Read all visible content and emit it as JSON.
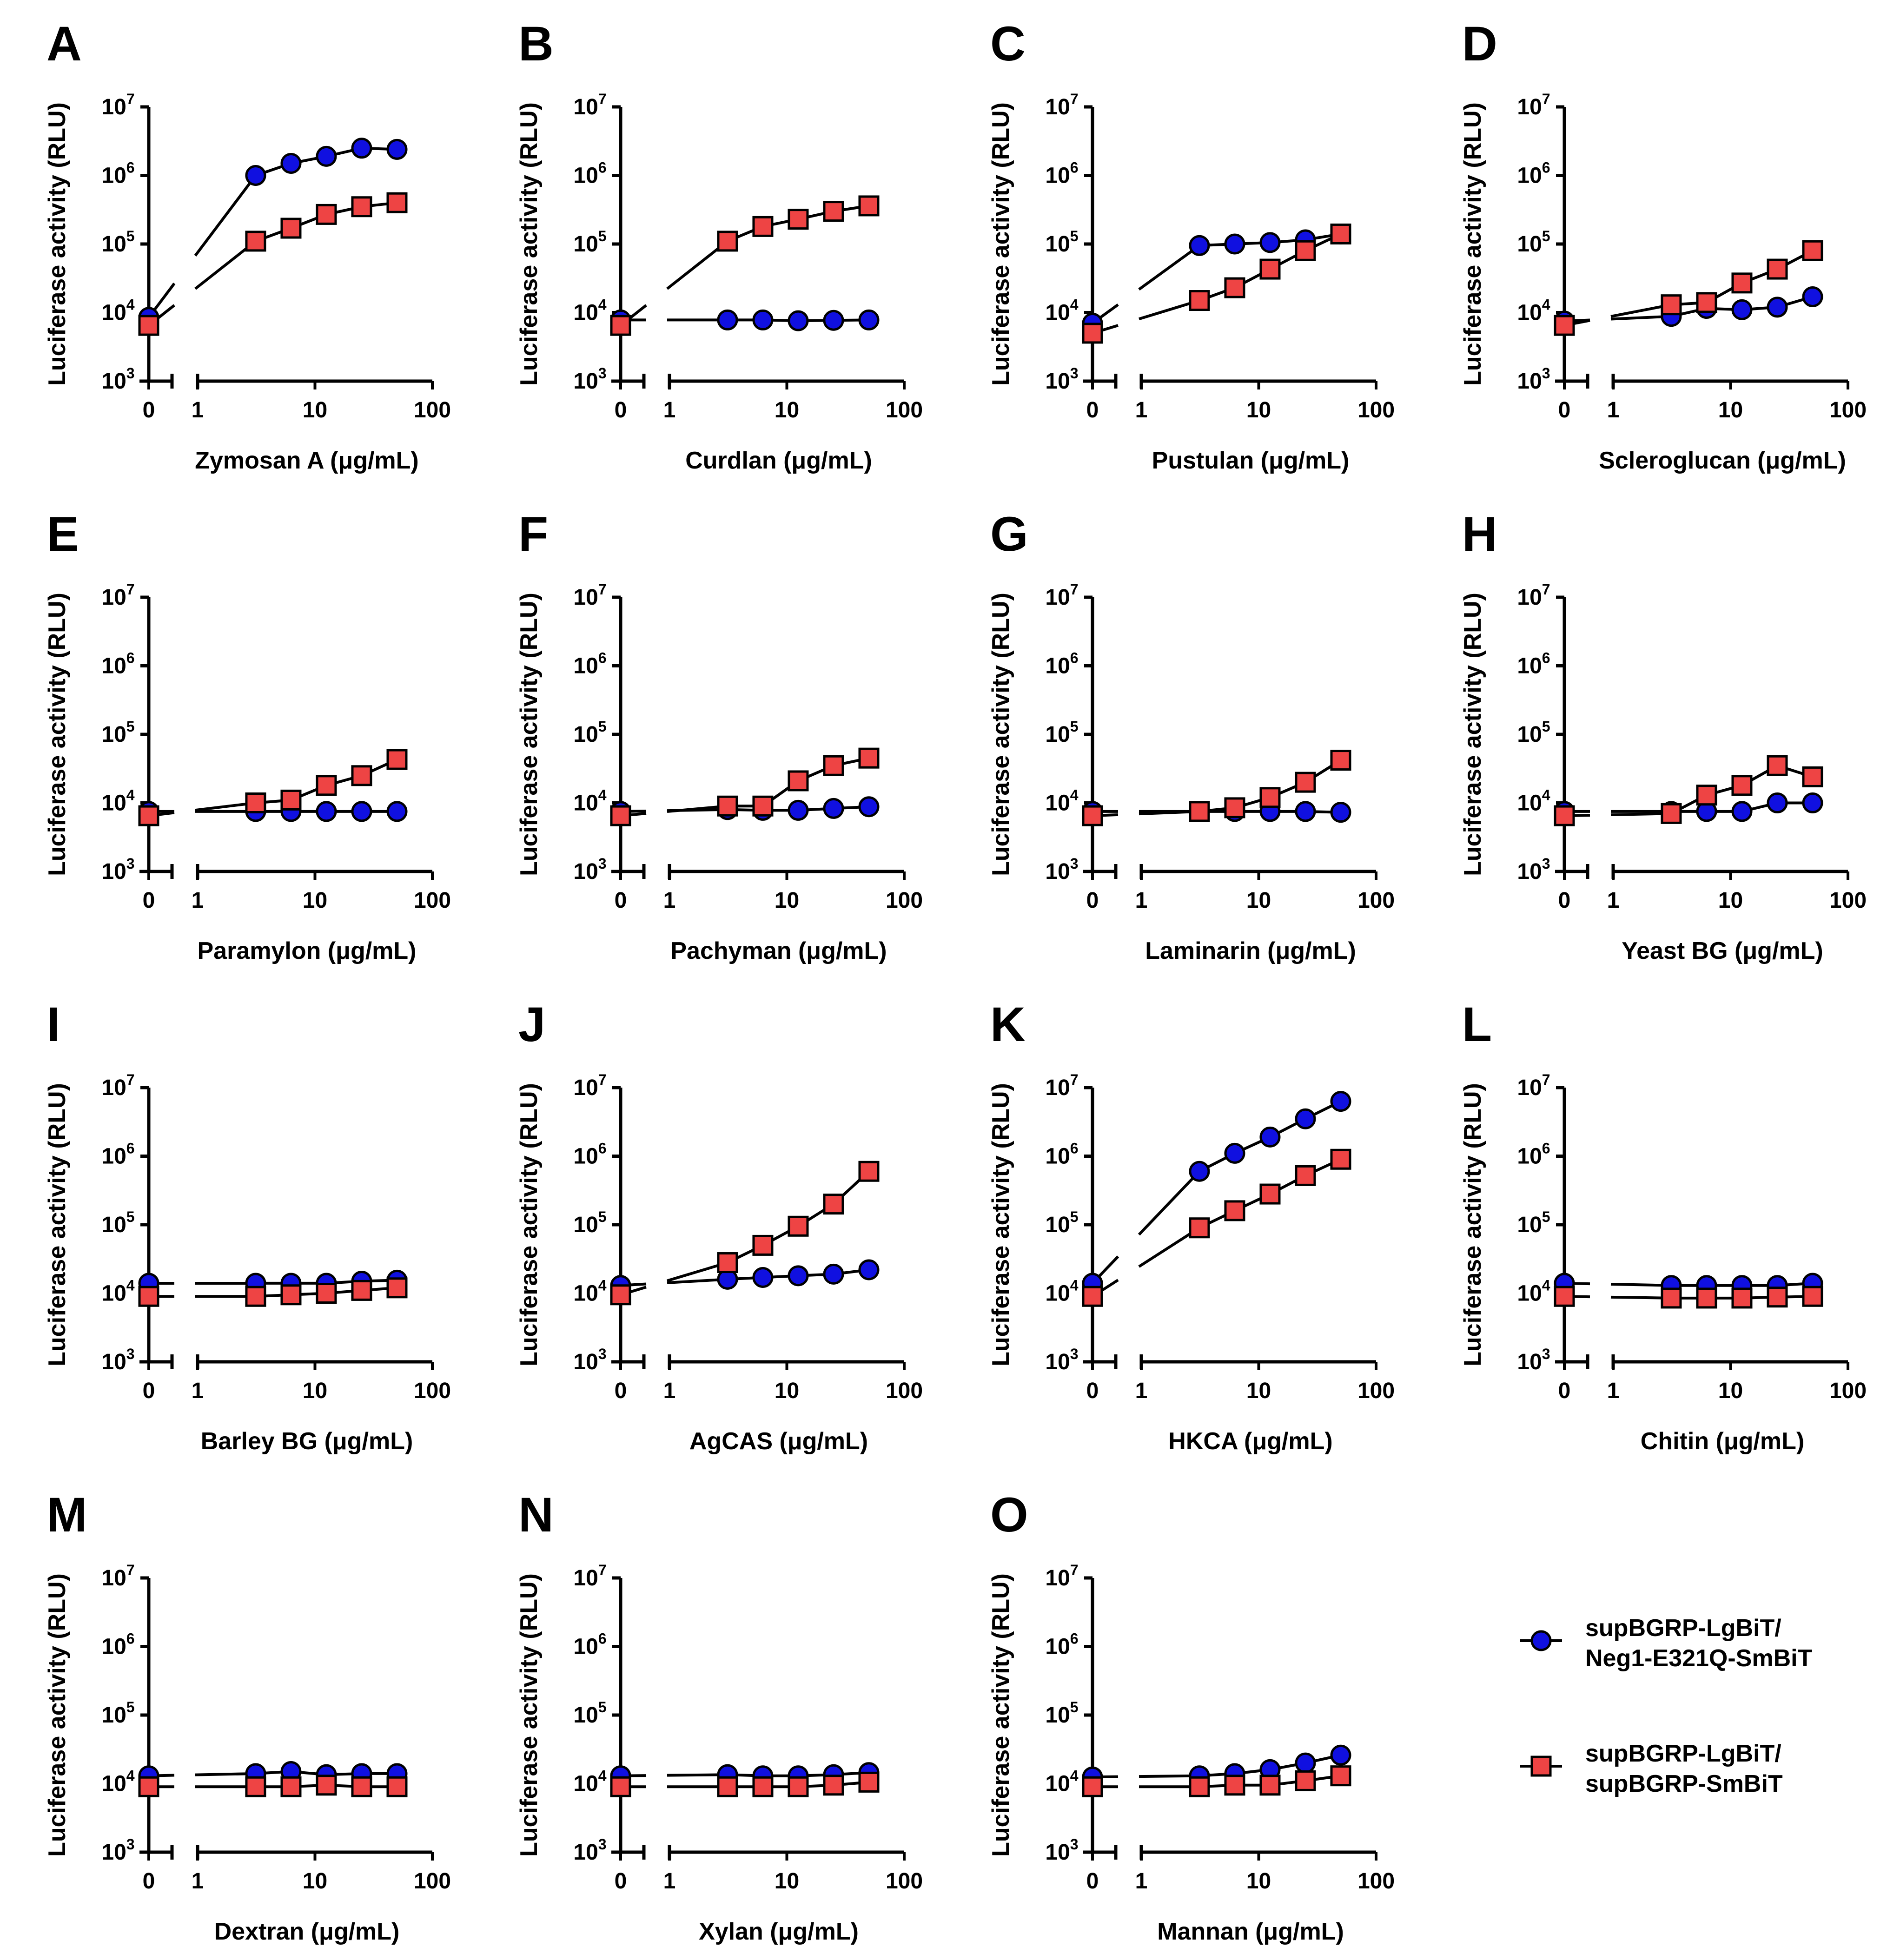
{
  "figure": {
    "ylabel": "Luciferase activity (RLU)",
    "y_tick_labels": [
      "10",
      "10",
      "10",
      "10",
      "10"
    ],
    "y_tick_exponents": [
      "3",
      "4",
      "5",
      "6",
      "7"
    ],
    "x_tick_labels": [
      "0",
      "1",
      "10",
      "100"
    ]
  },
  "legend": {
    "items": [
      {
        "line1": "supBGRP-LgBiT/",
        "line2": "Neg1-E321Q-SmBiT",
        "marker": "circle",
        "color": "#1010e0"
      },
      {
        "line1": "supBGRP-LgBiT/",
        "line2": "supBGRP-SmBiT",
        "marker": "square",
        "color": "#ee4444"
      }
    ]
  },
  "colors": {
    "blue": "#1010e0",
    "red": "#ee4444",
    "axis": "#000000"
  },
  "chart_data": [
    {
      "panel": "A",
      "type": "line",
      "title": "",
      "xlabel": "Zymosan A (μg/mL)",
      "ylabel": "Luciferase activity (RLU)",
      "xscale": "log",
      "yscale": "log",
      "ylim": [
        1000,
        10000000
      ],
      "xlim": [
        1,
        100
      ],
      "x": [
        0,
        3.125,
        6.25,
        12.5,
        25,
        50
      ],
      "series": [
        {
          "name": "supBGRP-LgBiT/Neg1-E321Q-SmBiT",
          "values": [
            8500,
            1000000,
            1500000,
            1900000,
            2500000,
            2400000
          ]
        },
        {
          "name": "supBGRP-LgBiT/supBGRP-SmBiT",
          "values": [
            6500,
            110000,
            170000,
            270000,
            350000,
            400000
          ]
        }
      ]
    },
    {
      "panel": "B",
      "type": "line",
      "title": "",
      "xlabel": "Curdlan (μg/mL)",
      "ylabel": "Luciferase activity (RLU)",
      "xscale": "log",
      "yscale": "log",
      "ylim": [
        1000,
        10000000
      ],
      "xlim": [
        1,
        100
      ],
      "x": [
        0,
        3.125,
        6.25,
        12.5,
        25,
        50
      ],
      "series": [
        {
          "name": "supBGRP-LgBiT/Neg1-E321Q-SmBiT",
          "values": [
            7800,
            7800,
            7800,
            7600,
            7700,
            7800
          ]
        },
        {
          "name": "supBGRP-LgBiT/supBGRP-SmBiT",
          "values": [
            6500,
            110000,
            180000,
            230000,
            300000,
            360000
          ]
        }
      ]
    },
    {
      "panel": "C",
      "type": "line",
      "title": "",
      "xlabel": "Pustulan (μg/mL)",
      "ylabel": "Luciferase activity (RLU)",
      "xscale": "log",
      "yscale": "log",
      "ylim": [
        1000,
        10000000
      ],
      "xlim": [
        1,
        100
      ],
      "x": [
        0,
        3.125,
        6.25,
        12.5,
        25,
        50
      ],
      "series": [
        {
          "name": "supBGRP-LgBiT/Neg1-E321Q-SmBiT",
          "values": [
            7000,
            95000,
            100000,
            105000,
            115000,
            140000
          ]
        },
        {
          "name": "supBGRP-LgBiT/supBGRP-SmBiT",
          "values": [
            5000,
            15000,
            23000,
            43000,
            80000,
            140000
          ]
        }
      ]
    },
    {
      "panel": "D",
      "type": "line",
      "title": "",
      "xlabel": "Scleroglucan (μg/mL)",
      "ylabel": "Luciferase activity (RLU)",
      "xscale": "log",
      "yscale": "log",
      "ylim": [
        1000,
        10000000
      ],
      "xlim": [
        1,
        100
      ],
      "x": [
        0,
        3.125,
        6.25,
        12.5,
        25,
        50
      ],
      "series": [
        {
          "name": "supBGRP-LgBiT/Neg1-E321Q-SmBiT",
          "values": [
            7500,
            8800,
            11500,
            11000,
            12000,
            17000
          ]
        },
        {
          "name": "supBGRP-LgBiT/supBGRP-SmBiT",
          "values": [
            6500,
            13000,
            14000,
            27000,
            43000,
            80000
          ]
        }
      ]
    },
    {
      "panel": "E",
      "type": "line",
      "title": "",
      "xlabel": "Paramylon (μg/mL)",
      "ylabel": "Luciferase activity (RLU)",
      "xscale": "log",
      "yscale": "log",
      "ylim": [
        1000,
        10000000
      ],
      "xlim": [
        1,
        100
      ],
      "x": [
        0,
        3.125,
        6.25,
        12.5,
        25,
        50
      ],
      "series": [
        {
          "name": "supBGRP-LgBiT/Neg1-E321Q-SmBiT",
          "values": [
            7500,
            7500,
            7500,
            7500,
            7500,
            7500
          ]
        },
        {
          "name": "supBGRP-LgBiT/supBGRP-SmBiT",
          "values": [
            6500,
            10000,
            11000,
            18000,
            25000,
            43000
          ]
        }
      ]
    },
    {
      "panel": "F",
      "type": "line",
      "title": "",
      "xlabel": "Pachyman (μg/mL)",
      "ylabel": "Luciferase activity (RLU)",
      "xscale": "log",
      "yscale": "log",
      "ylim": [
        1000,
        10000000
      ],
      "xlim": [
        1,
        100
      ],
      "x": [
        0,
        3.125,
        6.25,
        12.5,
        25,
        50
      ],
      "series": [
        {
          "name": "supBGRP-LgBiT/Neg1-E321Q-SmBiT",
          "values": [
            7500,
            8000,
            7800,
            7800,
            8300,
            8800
          ]
        },
        {
          "name": "supBGRP-LgBiT/supBGRP-SmBiT",
          "values": [
            6500,
            9000,
            9000,
            21000,
            35000,
            45000
          ]
        }
      ]
    },
    {
      "panel": "G",
      "type": "line",
      "title": "",
      "xlabel": "Laminarin (μg/mL)",
      "ylabel": "Luciferase activity (RLU)",
      "xscale": "log",
      "yscale": "log",
      "ylim": [
        1000,
        10000000
      ],
      "xlim": [
        1,
        100
      ],
      "x": [
        0,
        3.125,
        6.25,
        12.5,
        25,
        50
      ],
      "series": [
        {
          "name": "supBGRP-LgBiT/Neg1-E321Q-SmBiT",
          "values": [
            7500,
            7500,
            7500,
            7500,
            7500,
            7300
          ]
        },
        {
          "name": "supBGRP-LgBiT/supBGRP-SmBiT",
          "values": [
            6500,
            7500,
            8500,
            12000,
            20000,
            42000
          ]
        }
      ]
    },
    {
      "panel": "H",
      "type": "line",
      "title": "",
      "xlabel": "Yeast BG (μg/mL)",
      "ylabel": "Luciferase activity (RLU)",
      "xscale": "log",
      "yscale": "log",
      "ylim": [
        1000,
        10000000
      ],
      "xlim": [
        1,
        100
      ],
      "x": [
        0,
        3.125,
        6.25,
        12.5,
        25,
        50
      ],
      "series": [
        {
          "name": "supBGRP-LgBiT/Neg1-E321Q-SmBiT",
          "values": [
            7500,
            7500,
            7500,
            7500,
            10000,
            10000
          ]
        },
        {
          "name": "supBGRP-LgBiT/supBGRP-SmBiT",
          "values": [
            6500,
            7000,
            13000,
            18000,
            35000,
            24000
          ]
        }
      ]
    },
    {
      "panel": "I",
      "type": "line",
      "title": "",
      "xlabel": "Barley BG (μg/mL)",
      "ylabel": "Luciferase activity (RLU)",
      "xscale": "log",
      "yscale": "log",
      "ylim": [
        1000,
        10000000
      ],
      "xlim": [
        1,
        100
      ],
      "x": [
        0,
        3.125,
        6.25,
        12.5,
        25,
        50
      ],
      "series": [
        {
          "name": "supBGRP-LgBiT/Neg1-E321Q-SmBiT",
          "values": [
            14000,
            14000,
            14000,
            14000,
            15000,
            15500
          ]
        },
        {
          "name": "supBGRP-LgBiT/supBGRP-SmBiT",
          "values": [
            9000,
            9000,
            9500,
            10000,
            11000,
            12000
          ]
        }
      ]
    },
    {
      "panel": "J",
      "type": "line",
      "title": "",
      "xlabel": "AgCAS (μg/mL)",
      "ylabel": "Luciferase activity (RLU)",
      "xscale": "log",
      "yscale": "log",
      "ylim": [
        1000,
        10000000
      ],
      "xlim": [
        1,
        100
      ],
      "x": [
        0,
        3.125,
        6.25,
        12.5,
        25,
        50
      ],
      "series": [
        {
          "name": "supBGRP-LgBiT/Neg1-E321Q-SmBiT",
          "values": [
            13000,
            16000,
            17000,
            18000,
            19000,
            22000
          ]
        },
        {
          "name": "supBGRP-LgBiT/supBGRP-SmBiT",
          "values": [
            9500,
            28000,
            50000,
            95000,
            200000,
            600000
          ]
        }
      ]
    },
    {
      "panel": "K",
      "type": "line",
      "title": "",
      "xlabel": "HKCA (μg/mL)",
      "ylabel": "Luciferase activity (RLU)",
      "xscale": "log",
      "yscale": "log",
      "ylim": [
        1000,
        10000000
      ],
      "xlim": [
        1,
        100
      ],
      "x": [
        0,
        3.125,
        6.25,
        12.5,
        25,
        50
      ],
      "series": [
        {
          "name": "supBGRP-LgBiT/Neg1-E321Q-SmBiT",
          "values": [
            14000,
            600000,
            1100000,
            1900000,
            3500000,
            6300000
          ]
        },
        {
          "name": "supBGRP-LgBiT/supBGRP-SmBiT",
          "values": [
            9000,
            90000,
            160000,
            280000,
            520000,
            900000
          ]
        }
      ]
    },
    {
      "panel": "L",
      "type": "line",
      "title": "",
      "xlabel": "Chitin (μg/mL)",
      "ylabel": "Luciferase activity (RLU)",
      "xscale": "log",
      "yscale": "log",
      "ylim": [
        1000,
        10000000
      ],
      "xlim": [
        1,
        100
      ],
      "x": [
        0,
        3.125,
        6.25,
        12.5,
        25,
        50
      ],
      "series": [
        {
          "name": "supBGRP-LgBiT/Neg1-E321Q-SmBiT",
          "values": [
            14000,
            13000,
            13000,
            13000,
            13000,
            14000
          ]
        },
        {
          "name": "supBGRP-LgBiT/supBGRP-SmBiT",
          "values": [
            9000,
            8500,
            8500,
            8500,
            8800,
            9000
          ]
        }
      ]
    },
    {
      "panel": "M",
      "type": "line",
      "title": "",
      "xlabel": "Dextran (μg/mL)",
      "ylabel": "Luciferase activity (RLU)",
      "xscale": "log",
      "yscale": "log",
      "ylim": [
        1000,
        10000000
      ],
      "xlim": [
        1,
        100
      ],
      "x": [
        0,
        3.125,
        6.25,
        12.5,
        25,
        50
      ],
      "series": [
        {
          "name": "supBGRP-LgBiT/Neg1-E321Q-SmBiT",
          "values": [
            13000,
            14000,
            15000,
            13500,
            14000,
            14000
          ]
        },
        {
          "name": "supBGRP-LgBiT/supBGRP-SmBiT",
          "values": [
            9000,
            9000,
            9000,
            9500,
            9000,
            9000
          ]
        }
      ]
    },
    {
      "panel": "N",
      "type": "line",
      "title": "",
      "xlabel": "Xylan (μg/mL)",
      "ylabel": "Luciferase activity (RLU)",
      "xscale": "log",
      "yscale": "log",
      "ylim": [
        1000,
        10000000
      ],
      "xlim": [
        1,
        100
      ],
      "x": [
        0,
        3.125,
        6.25,
        12.5,
        25,
        50
      ],
      "series": [
        {
          "name": "supBGRP-LgBiT/Neg1-E321Q-SmBiT",
          "values": [
            13000,
            13500,
            13000,
            13000,
            13500,
            14500
          ]
        },
        {
          "name": "supBGRP-LgBiT/supBGRP-SmBiT",
          "values": [
            9000,
            9000,
            9000,
            9000,
            9500,
            10500
          ]
        }
      ]
    },
    {
      "panel": "O",
      "type": "line",
      "title": "",
      "xlabel": "Mannan (μg/mL)",
      "ylabel": "Luciferase activity (RLU)",
      "xscale": "log",
      "yscale": "log",
      "ylim": [
        1000,
        10000000
      ],
      "xlim": [
        1,
        100
      ],
      "x": [
        0,
        3.125,
        6.25,
        12.5,
        25,
        50
      ],
      "series": [
        {
          "name": "supBGRP-LgBiT/Neg1-E321Q-SmBiT",
          "values": [
            12500,
            13000,
            14000,
            16000,
            20000,
            26000
          ]
        },
        {
          "name": "supBGRP-LgBiT/supBGRP-SmBiT",
          "values": [
            9000,
            9000,
            9500,
            9500,
            11000,
            13000
          ]
        }
      ]
    }
  ]
}
